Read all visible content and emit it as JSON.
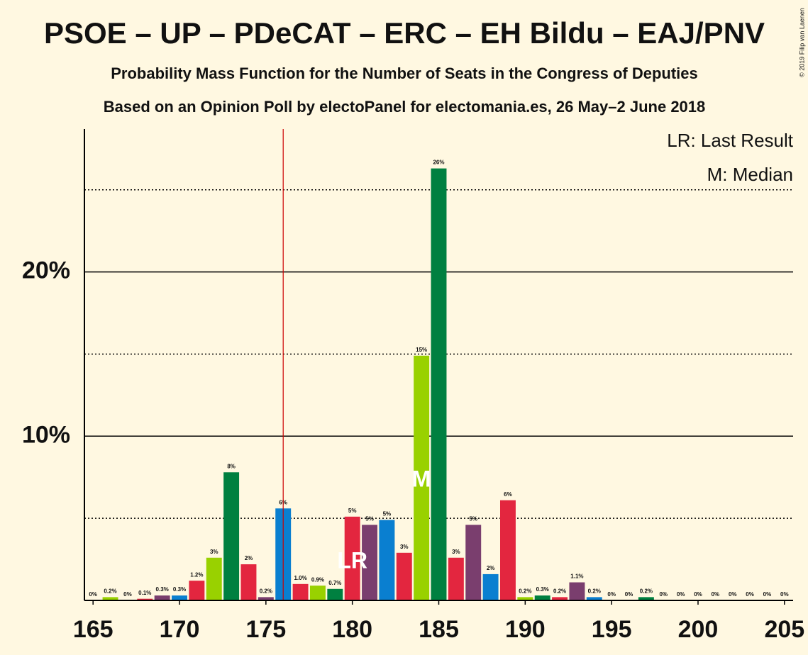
{
  "chart_data": {
    "type": "bar",
    "title": "PSOE – UP – PDeCAT – ERC – EH Bildu – EAJ/PNV",
    "subtitle": "Probability Mass Function for the Number of Seats in the Congress of Deputies",
    "subtitle2": "Based on an Opinion Poll by electoPanel for electomania.es, 26 May–2 June 2018",
    "copyright": "© 2019 Filip van Laenen",
    "legend_lr": "LR: Last Result",
    "legend_m": "M: Median",
    "lr_label": "LR",
    "m_label": "M",
    "last_result": 176,
    "median": 184,
    "x": [
      165,
      166,
      167,
      168,
      169,
      170,
      171,
      172,
      173,
      174,
      175,
      176,
      177,
      178,
      179,
      180,
      181,
      182,
      183,
      184,
      185,
      186,
      187,
      188,
      189,
      190,
      191,
      192,
      193,
      194,
      195,
      196,
      197,
      198,
      199,
      200,
      201,
      202,
      203,
      204,
      205
    ],
    "values": [
      0,
      0.2,
      0,
      0.1,
      0.3,
      0.3,
      1.2,
      2.6,
      7.8,
      2.2,
      0.2,
      5.6,
      1.0,
      0.9,
      0.7,
      5.1,
      4.6,
      4.9,
      2.9,
      14.9,
      26.3,
      2.6,
      4.6,
      1.6,
      6.1,
      0.2,
      0.3,
      0.2,
      1.1,
      0.2,
      0,
      0,
      0.2,
      0,
      0,
      0,
      0,
      0,
      0,
      0,
      0
    ],
    "value_labels": [
      "0%",
      "0.2%",
      "0%",
      "0.1%",
      "0.3%",
      "0.3%",
      "1.2%",
      "3%",
      "8%",
      "2%",
      "0.2%",
      "6%",
      "1.0%",
      "0.9%",
      "0.7%",
      "5%",
      "5%",
      "5%",
      "3%",
      "15%",
      "26%",
      "3%",
      "5%",
      "2%",
      "6%",
      "0.2%",
      "0.3%",
      "0.2%",
      "1.1%",
      "0.2%",
      "0%",
      "0%",
      "0.2%",
      "0%",
      "0%",
      "0%",
      "0%",
      "0%",
      "0%",
      "0%",
      "0%"
    ],
    "colors": [
      "#e3263f",
      "#99d100",
      "#008040",
      "#e3263f",
      "#7a3e6e",
      "#0a7fd0"
    ],
    "xlim": [
      164.5,
      205.5
    ],
    "xticks": [
      165,
      170,
      175,
      180,
      185,
      190,
      195,
      200,
      205
    ],
    "ylim": [
      0,
      28.7
    ],
    "yticks": [
      {
        "value": 10,
        "label": "10%"
      },
      {
        "value": 20,
        "label": "20%"
      }
    ],
    "minor_yticks": [
      5,
      15,
      25
    ]
  }
}
